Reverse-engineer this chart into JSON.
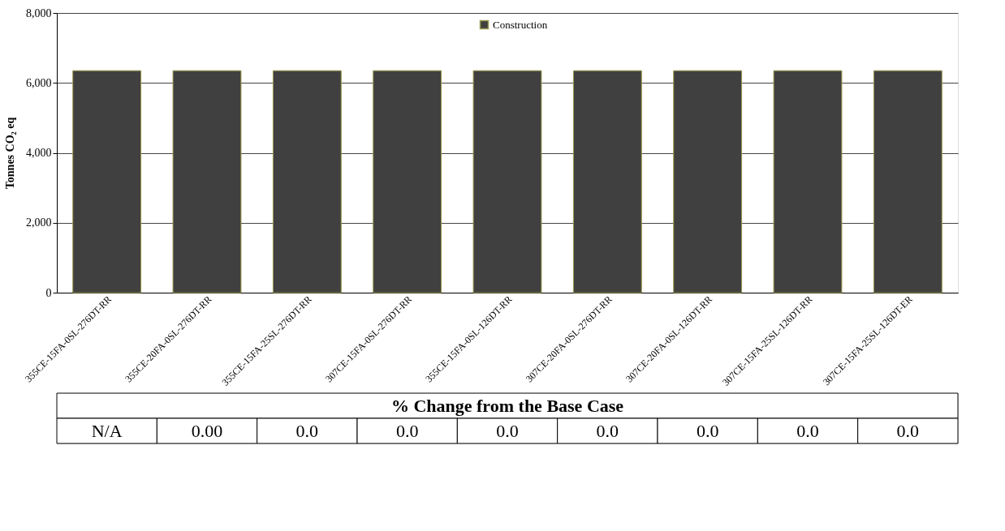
{
  "chart_data": {
    "type": "bar",
    "ylabel": "Tonnes  CO₂ eq",
    "categories": [
      "355CE-15FA-0SL-276DT-RR",
      "355CE-20FA-0SL-276DT-RR",
      "355CE-15FA-25SL-276DT-RR",
      "307CE-15FA-0SL-276DT-RR",
      "355CE-15FA-0SL-126DT-RR",
      "307CE-20FA-0SL-276DT-RR",
      "307CE-20FA-0SL-126DT-RR",
      "307CE-15FA-25SL-126DT-RR",
      "307CE-15FA-25SL-126DT-ER"
    ],
    "series": [
      {
        "name": "Construction",
        "color": "#404040",
        "values": [
          6350,
          6350,
          6350,
          6350,
          6350,
          6350,
          6350,
          6350,
          6350
        ]
      }
    ],
    "ylim": [
      0,
      8000
    ],
    "yticks": [
      {
        "value": 0,
        "label": "0"
      },
      {
        "value": 2000,
        "label": "2,000"
      },
      {
        "value": 4000,
        "label": "4,000"
      },
      {
        "value": 6000,
        "label": "6,000"
      },
      {
        "value": 8000,
        "label": "8,000"
      }
    ],
    "grid": "y",
    "legend": "top",
    "annotations": [
      "% Change from the Base Case",
      "N/A",
      "0.00",
      "0.0",
      "0.0",
      "0.0",
      "0.0",
      "0.0",
      "0.0",
      "0.0"
    ]
  }
}
